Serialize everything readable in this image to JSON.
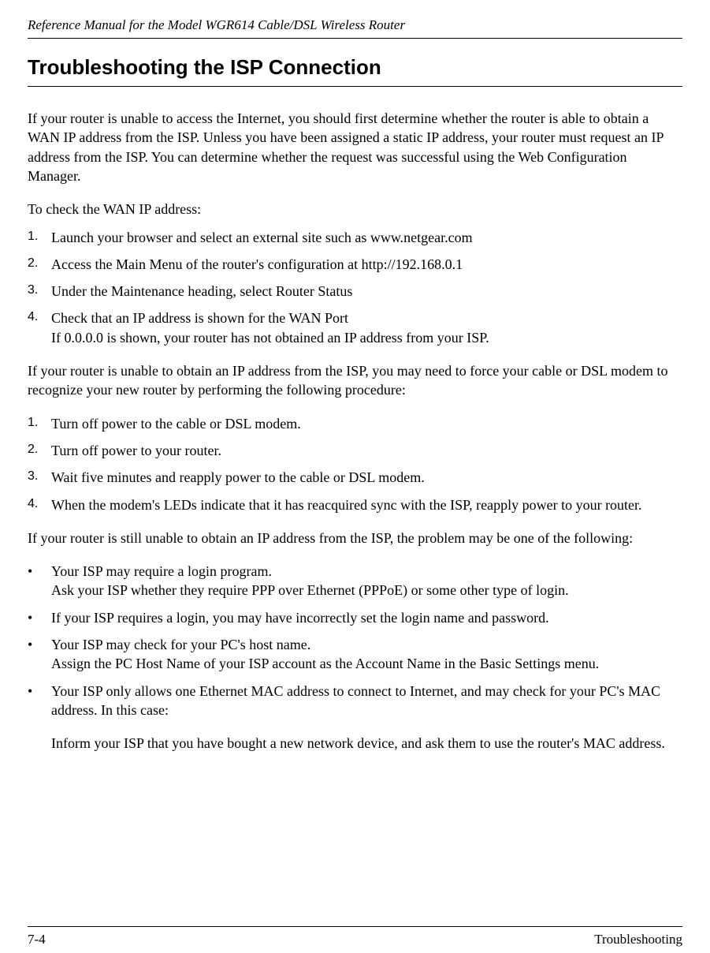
{
  "header": {
    "document_title": "Reference Manual for the Model WGR614 Cable/DSL Wireless Router"
  },
  "section": {
    "title": "Troubleshooting the ISP Connection"
  },
  "intro_paragraph": "If your router is unable to access the Internet, you should first determine whether the router is able to obtain a WAN IP address from the ISP. Unless you have been assigned a static IP address, your router must request an IP address from the ISP. You can determine whether the request was successful using the Web Configuration Manager.",
  "check_wan": {
    "intro": "To check the WAN IP address:",
    "steps": [
      "Launch your browser and select an external site such as www.netgear.com",
      "Access the Main Menu of the router's configuration at http://192.168.0.1",
      "Under the Maintenance heading, select Router Status",
      "Check that an IP address is shown for the WAN Port\nIf 0.0.0.0 is shown, your router has not obtained an IP address from your ISP."
    ]
  },
  "force_modem": {
    "intro": "If your router is unable to obtain an IP address from the ISP, you may need to force your cable or DSL modem to recognize your new router by performing the following procedure:",
    "steps": [
      "Turn off power to the cable or DSL modem.",
      "Turn off power to your router.",
      "Wait five minutes and reapply power to the cable or DSL modem.",
      "When the modem's LEDs indicate that it has reacquired sync with the ISP, reapply power to your router."
    ]
  },
  "still_unable": {
    "intro": "If your router is still unable to obtain an IP address from the ISP, the problem may be one of the following:",
    "bullets": [
      "Your ISP may require a login program.\nAsk your ISP whether they require PPP over Ethernet (PPPoE) or some other type of login.",
      "If your ISP requires a login, you may have incorrectly set the login name and password.",
      "Your ISP may check for your PC's host name.\nAssign the PC Host Name of your ISP account as the Account Name in the Basic Settings menu.",
      "Your ISP only allows one Ethernet MAC address to connect to Internet, and may check for your PC's MAC address. In this case:"
    ],
    "sub_paragraph": "Inform your ISP that you have bought a new network device, and ask them to use the router's MAC address."
  },
  "footer": {
    "page": "7-4",
    "section": "Troubleshooting"
  }
}
